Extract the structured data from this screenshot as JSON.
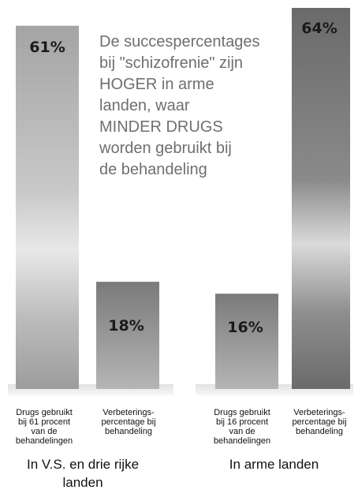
{
  "chart_data": {
    "type": "bar",
    "title": "",
    "annotation": "De succespercentages\nbij \"schizofrenie\" zijn\nHOGER in arme\nlanden, waar\nMINDER DRUGS\nworden gebruikt bij\nde behandeling",
    "categories": [
      "Drugs gebruikt bij 61 procent van de behandelingen",
      "Verbeterings-percentage bij behandeling",
      "Drugs gebruikt bij 16 procent van de behandelingen",
      "Verbeterings-percentage bij behandeling"
    ],
    "category_lines": [
      [
        "Drugs gebruikt",
        "bij 61 procent",
        "van de",
        "behandelingen"
      ],
      [
        "Verbeterings-",
        "percentage bij",
        "behandeling"
      ],
      [
        "Drugs gebruikt",
        "bij 16 procent",
        "van de",
        "behandelingen"
      ],
      [
        "Verbeterings-",
        "percentage bij",
        "behandeling"
      ]
    ],
    "groups": [
      "In V.S. en drie rijke\nlanden",
      "In arme landen"
    ],
    "values": [
      61,
      18,
      16,
      64
    ],
    "value_labels": [
      "61%",
      "18%",
      "16%",
      "64%"
    ],
    "ylim": [
      0,
      64
    ],
    "colors": {
      "light_bar": "#a6a6a6",
      "dark_bar": "#6e6e6e"
    }
  }
}
